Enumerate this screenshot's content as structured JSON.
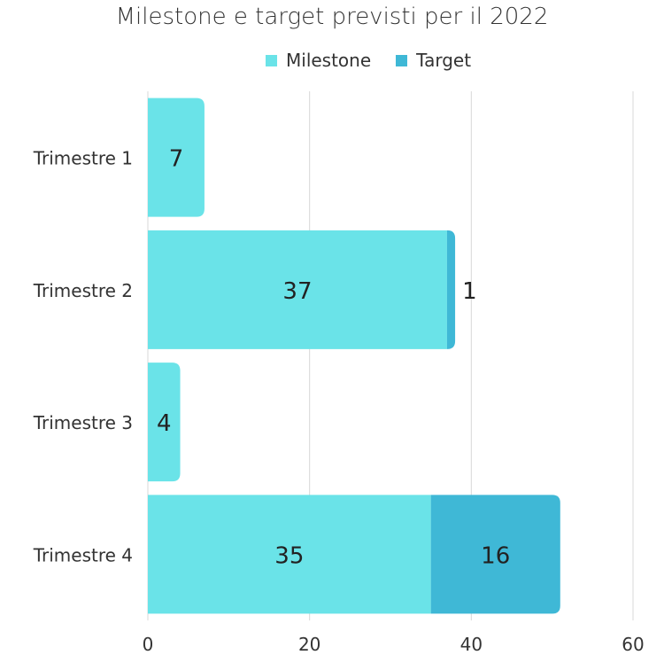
{
  "chart_data": {
    "type": "bar",
    "orientation": "horizontal",
    "stacked": true,
    "title": "Milestone e target previsti per il 2022",
    "categories": [
      "Trimestre 1",
      "Trimestre 2",
      "Trimestre 3",
      "Trimestre 4"
    ],
    "series": [
      {
        "name": "Milestone",
        "values": [
          7,
          37,
          4,
          35
        ],
        "color": "#6ae3e8"
      },
      {
        "name": "Target",
        "values": [
          0,
          1,
          0,
          16
        ],
        "color": "#3fb8d6"
      }
    ],
    "xlim": [
      0,
      60
    ],
    "xticks": [
      0,
      20,
      40,
      60
    ],
    "grid": true,
    "legend_position": "top"
  }
}
